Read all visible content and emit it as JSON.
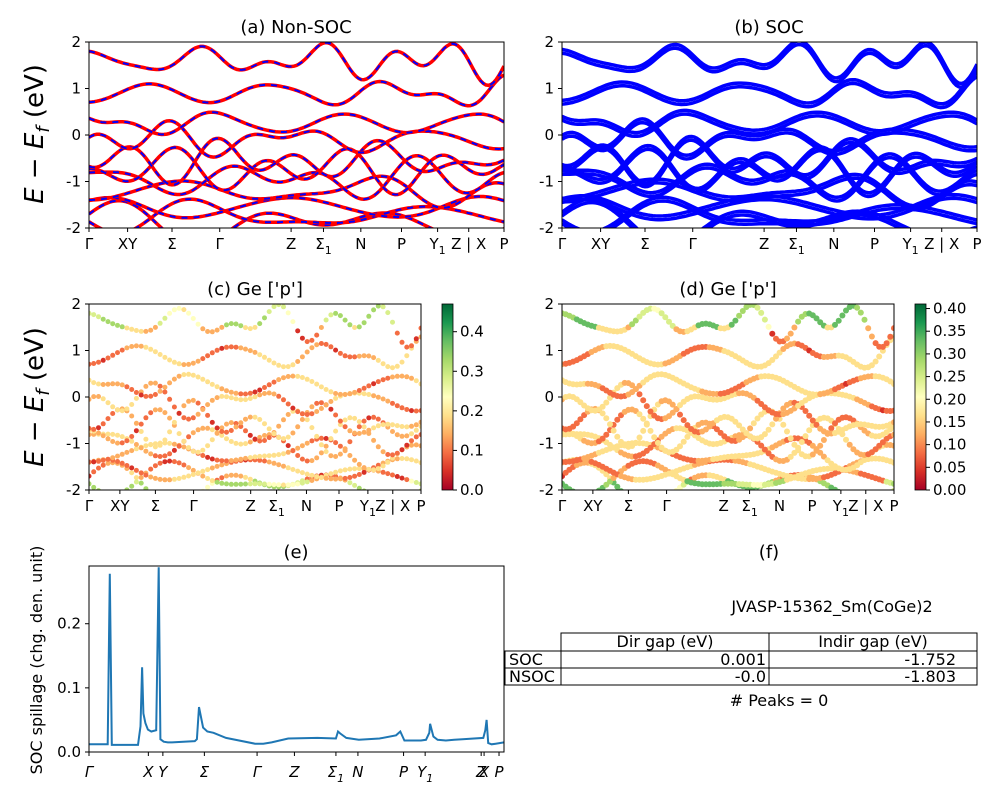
{
  "figure": {
    "ylabel": "E − E_f (eV)",
    "ylabel_main": "E − E",
    "ylabel_sub": "f",
    "ylabel_tail": " (eV)"
  },
  "kpath": [
    {
      "label": "Γ",
      "sub": "",
      "pos": 0.0
    },
    {
      "label": "XY",
      "sub": "",
      "pos": 0.093
    },
    {
      "label": "Σ",
      "sub": "",
      "pos": 0.2
    },
    {
      "label": "Γ",
      "sub": "",
      "pos": 0.315
    },
    {
      "label": "Z",
      "sub": "",
      "pos": 0.487
    },
    {
      "label": "Σ",
      "sub": "1",
      "pos": 0.565
    },
    {
      "label": "N",
      "sub": "",
      "pos": 0.655
    },
    {
      "label": "P",
      "sub": "",
      "pos": 0.753
    },
    {
      "label": "Y",
      "sub": "1",
      "pos": 0.84
    },
    {
      "label": "Z | X",
      "sub": "",
      "pos": 0.915
    },
    {
      "label": "P",
      "sub": "",
      "pos": 1.0
    }
  ],
  "chart_data": [
    {
      "panel": "a",
      "type": "line",
      "title": "(a) Non-SOC",
      "ylim": [
        -2,
        2
      ],
      "yticks": [
        -2,
        -1,
        0,
        1,
        2
      ],
      "series": [
        {
          "color": "#ff0000",
          "style": "solid",
          "bands": "band-structure"
        },
        {
          "color": "#0000ff",
          "style": "dashed",
          "bands": "band-structure"
        }
      ]
    },
    {
      "panel": "b",
      "type": "line",
      "title": "(b) SOC",
      "ylim": [
        -2,
        2
      ],
      "yticks": [
        -2,
        -1,
        0,
        1,
        2
      ],
      "series": [
        {
          "color": "#0000ff",
          "style": "solid",
          "bands": "band-structure (spin-split)"
        }
      ]
    },
    {
      "panel": "c",
      "type": "scatter",
      "title": "(c)  Ge ['p']",
      "ylim": [
        -2,
        2
      ],
      "yticks": [
        -2,
        -1,
        0,
        1,
        2
      ],
      "colorbar": {
        "colormap": "RdYlGn",
        "min": 0.0,
        "max": 0.47,
        "ticks": [
          "0.0",
          "0.1",
          "0.2",
          "0.3",
          "0.4"
        ]
      }
    },
    {
      "panel": "d",
      "type": "scatter",
      "title": "(d) Ge ['p']",
      "ylim": [
        -2,
        2
      ],
      "yticks": [
        -2,
        -1,
        0,
        1,
        2
      ],
      "colorbar": {
        "colormap": "RdYlGn",
        "min": 0.0,
        "max": 0.41,
        "ticks": [
          "0.00",
          "0.05",
          "0.10",
          "0.15",
          "0.20",
          "0.25",
          "0.30",
          "0.35",
          "0.40"
        ]
      }
    },
    {
      "panel": "e",
      "type": "line",
      "title": "(e)",
      "ylabel": "SOC spillage (chg. den. unit)",
      "ylim": [
        0,
        0.29
      ],
      "yticks": [
        "0.0",
        "0.1",
        "0.2"
      ],
      "xticks": [
        "Γ",
        "X",
        "Y",
        "Σ",
        "Γ",
        "Z",
        "Σ1",
        "N",
        "P",
        "Y1",
        "Z",
        "X",
        "P"
      ],
      "series": [
        {
          "color": "#1f77b4",
          "x": [
            0.0,
            0.045,
            0.05,
            0.055,
            0.118,
            0.124,
            0.128,
            0.131,
            0.136,
            0.142,
            0.15,
            0.162,
            0.168,
            0.172,
            0.18,
            0.19,
            0.2,
            0.255,
            0.26,
            0.265,
            0.275,
            0.285,
            0.3,
            0.33,
            0.4,
            0.42,
            0.44,
            0.48,
            0.55,
            0.595,
            0.6,
            0.605,
            0.62,
            0.65,
            0.7,
            0.74,
            0.75,
            0.76,
            0.8,
            0.812,
            0.82,
            0.822,
            0.83,
            0.84,
            0.86,
            0.88,
            0.9,
            0.95,
            0.955,
            0.958,
            0.962,
            0.97,
            0.98,
            1.0
          ],
          "y": [
            0.012,
            0.012,
            0.278,
            0.011,
            0.011,
            0.04,
            0.132,
            0.06,
            0.045,
            0.035,
            0.032,
            0.034,
            0.288,
            0.02,
            0.016,
            0.015,
            0.015,
            0.017,
            0.02,
            0.07,
            0.038,
            0.032,
            0.03,
            0.022,
            0.013,
            0.013,
            0.015,
            0.021,
            0.022,
            0.021,
            0.032,
            0.029,
            0.022,
            0.019,
            0.021,
            0.026,
            0.032,
            0.018,
            0.018,
            0.019,
            0.03,
            0.044,
            0.024,
            0.019,
            0.018,
            0.019,
            0.02,
            0.022,
            0.034,
            0.05,
            0.014,
            0.012,
            0.013,
            0.015
          ]
        }
      ]
    }
  ],
  "info": {
    "title": "(f)",
    "material": "JVASP-15362_Sm(CoGe)2",
    "table": {
      "headers": [
        "Dir gap (eV)",
        "Indir gap (eV)"
      ],
      "rows": [
        {
          "name": "SOC",
          "dir": "0.001",
          "indir": "-1.752"
        },
        {
          "name": "NSOC",
          "dir": "-0.0",
          "indir": "-1.803"
        }
      ]
    },
    "peaks": "# Peaks = 0"
  }
}
